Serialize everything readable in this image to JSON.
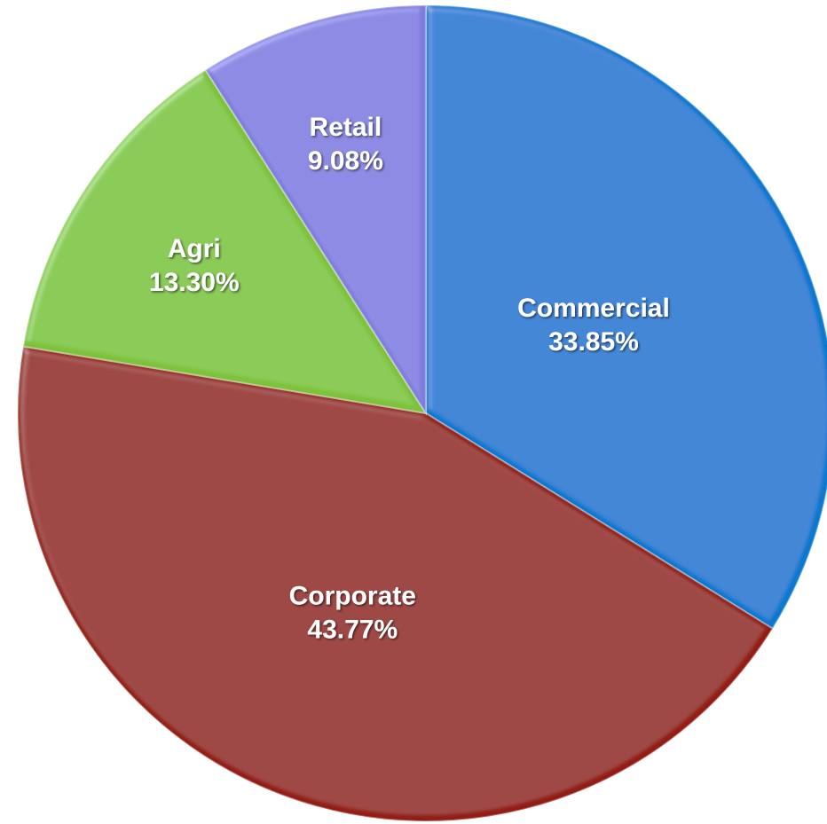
{
  "chart_data": {
    "type": "pie",
    "slices": [
      {
        "label": "Commercial",
        "value": 33.85,
        "value_label": "33.85%",
        "color": "#0A78CF"
      },
      {
        "label": "Corporate",
        "value": 43.77,
        "value_label": "43.77%",
        "color": "#931F14"
      },
      {
        "label": "Agri",
        "value": 13.3,
        "value_label": "13.30%",
        "color": "#7DC23B"
      },
      {
        "label": "Retail",
        "value": 9.08,
        "value_label": "9.08%",
        "color": "#7F7DDC"
      }
    ],
    "start_angle": "top",
    "direction": "clockwise",
    "legend": "none",
    "labels_inside": true
  }
}
